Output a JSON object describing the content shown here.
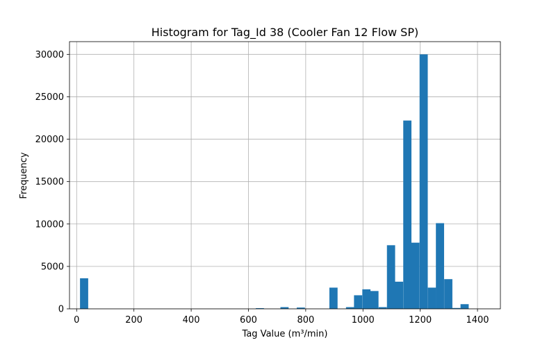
{
  "chart_data": {
    "type": "bar",
    "title": "Histogram for Tag_Id 38 (Cooler Fan 12 Flow SP)",
    "xlabel": "Tag Value (m³/min)",
    "ylabel": "Frequency",
    "xlim": [
      -25,
      1480
    ],
    "ylim": [
      0,
      31500
    ],
    "xticks": [
      0,
      200,
      400,
      600,
      800,
      1000,
      1200,
      1400
    ],
    "yticks": [
      0,
      5000,
      10000,
      15000,
      20000,
      25000,
      30000
    ],
    "grid": true,
    "bar_color": "#1f77b4",
    "bin_width": 28.6,
    "bins": [
      {
        "x": 26,
        "value": 3600
      },
      {
        "x": 640,
        "value": 80
      },
      {
        "x": 726,
        "value": 200
      },
      {
        "x": 783,
        "value": 150
      },
      {
        "x": 897,
        "value": 2500
      },
      {
        "x": 955,
        "value": 200
      },
      {
        "x": 983,
        "value": 1600
      },
      {
        "x": 1012,
        "value": 2300
      },
      {
        "x": 1040,
        "value": 2100
      },
      {
        "x": 1069,
        "value": 200
      },
      {
        "x": 1098,
        "value": 7500
      },
      {
        "x": 1126,
        "value": 3200
      },
      {
        "x": 1155,
        "value": 22200
      },
      {
        "x": 1183,
        "value": 7800
      },
      {
        "x": 1212,
        "value": 30000
      },
      {
        "x": 1241,
        "value": 2500
      },
      {
        "x": 1269,
        "value": 10100
      },
      {
        "x": 1298,
        "value": 3500
      },
      {
        "x": 1326,
        "value": 100
      },
      {
        "x": 1355,
        "value": 550
      }
    ]
  }
}
